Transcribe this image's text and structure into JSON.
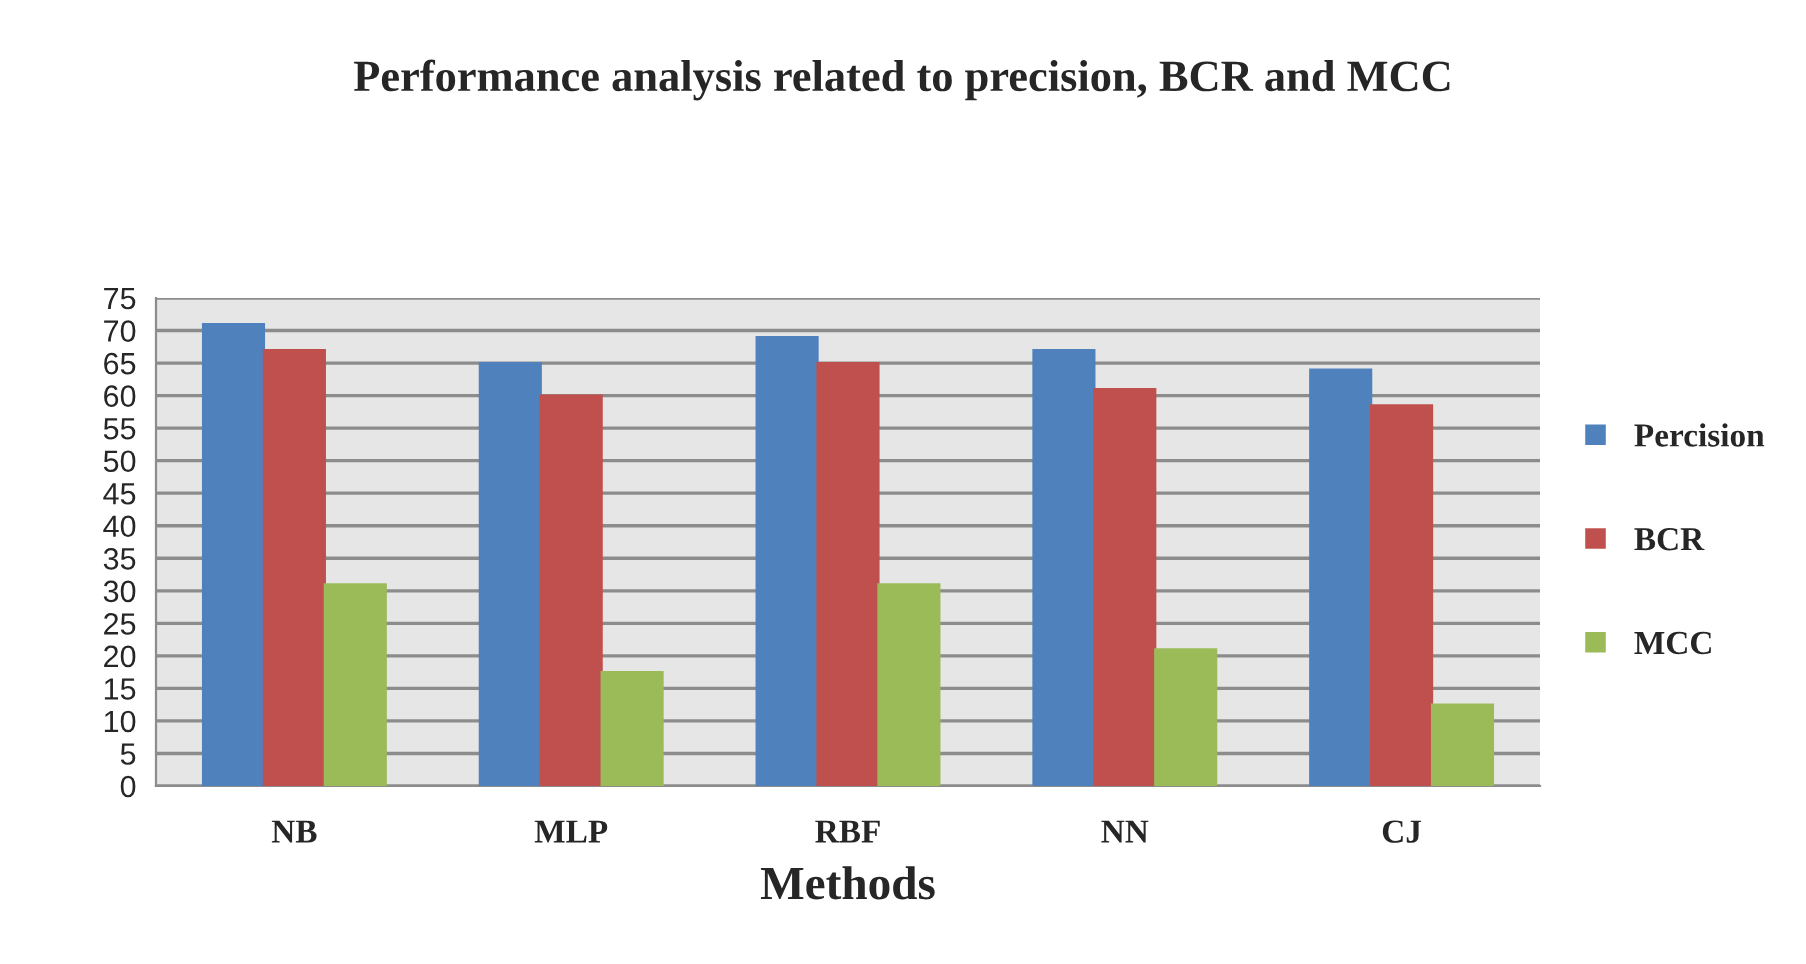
{
  "chart_data": {
    "type": "bar",
    "title": "Performance analysis related to precision, BCR and MCC",
    "xlabel": "Methods",
    "categories": [
      "NB",
      "MLP",
      "RBF",
      "NN",
      "CJ"
    ],
    "series": [
      {
        "name": "Percision",
        "color": "#4f81bd",
        "values": [
          71,
          65,
          69,
          67,
          64
        ]
      },
      {
        "name": "BCR",
        "color": "#c0504d",
        "values": [
          67,
          60,
          65,
          61,
          58.5
        ]
      },
      {
        "name": "MCC",
        "color": "#9bbb59",
        "values": [
          31,
          17.5,
          31,
          21,
          12.5
        ]
      }
    ],
    "ylim": [
      0,
      75
    ],
    "yticks": [
      0,
      5,
      10,
      15,
      20,
      25,
      30,
      35,
      40,
      45,
      50,
      55,
      60,
      65,
      70,
      75
    ],
    "grid": "y",
    "legend": "right"
  }
}
